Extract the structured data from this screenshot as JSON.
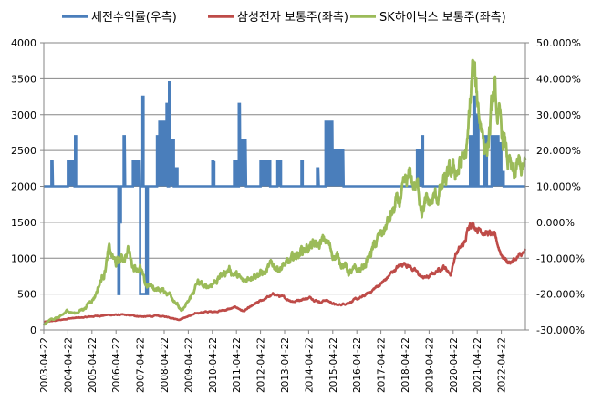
{
  "chart_data": {
    "type": "line",
    "title": "",
    "legend_position": "top",
    "grid": "horizontal",
    "y_left": {
      "min": 0,
      "max": 4000,
      "step": 500,
      "ticks": [
        "0",
        "500",
        "1000",
        "1500",
        "2000",
        "2500",
        "3000",
        "3500",
        "4000"
      ]
    },
    "y_right": {
      "min": -30,
      "max": 50,
      "step": 10,
      "ticks": [
        "-30.000%",
        "-20.000%",
        "-10.000%",
        "0.000%",
        "10.000%",
        "20.000%",
        "30.000%",
        "40.000%",
        "50.000%"
      ]
    },
    "x": {
      "start": "2003-04-22",
      "end": "2023-04-22",
      "ticks": [
        "2003-04-22",
        "2004-04-22",
        "2005-04-22",
        "2006-04-22",
        "2007-04-22",
        "2008-04-22",
        "2009-04-22",
        "2010-04-22",
        "2011-04-22",
        "2012-04-22",
        "2013-04-22",
        "2014-04-22",
        "2015-04-22",
        "2016-04-22",
        "2017-04-22",
        "2018-04-22",
        "2019-04-22",
        "2020-04-22",
        "2021-04-22",
        "2022-04-22"
      ]
    },
    "series": [
      {
        "name": "세전수익률(우측)",
        "axis": "right",
        "color": "#4a7ebb",
        "base": 10,
        "spikes": [
          {
            "from": 2003.62,
            "to": 2003.68,
            "y": 17
          },
          {
            "from": 2004.3,
            "to": 2004.58,
            "y": 17
          },
          {
            "from": 2004.6,
            "to": 2004.64,
            "y": 24
          },
          {
            "from": 2006.4,
            "to": 2006.44,
            "y": -20
          },
          {
            "from": 2006.44,
            "to": 2006.5,
            "y": 0
          },
          {
            "from": 2006.62,
            "to": 2006.68,
            "y": 24
          },
          {
            "from": 2007.0,
            "to": 2007.3,
            "y": 17
          },
          {
            "from": 2007.3,
            "to": 2007.55,
            "y": -20
          },
          {
            "from": 2007.4,
            "to": 2007.44,
            "y": 35
          },
          {
            "from": 2007.55,
            "to": 2007.62,
            "y": -20
          },
          {
            "from": 2008.0,
            "to": 2008.1,
            "y": 24
          },
          {
            "from": 2008.1,
            "to": 2008.4,
            "y": 28
          },
          {
            "from": 2008.4,
            "to": 2008.45,
            "y": 33
          },
          {
            "from": 2008.5,
            "to": 2008.55,
            "y": 39
          },
          {
            "from": 2008.55,
            "to": 2008.7,
            "y": 23
          },
          {
            "from": 2008.8,
            "to": 2008.85,
            "y": 15
          },
          {
            "from": 2010.3,
            "to": 2010.38,
            "y": 17
          },
          {
            "from": 2011.2,
            "to": 2011.3,
            "y": 17
          },
          {
            "from": 2011.4,
            "to": 2011.46,
            "y": 33
          },
          {
            "from": 2011.46,
            "to": 2011.7,
            "y": 23
          },
          {
            "from": 2012.3,
            "to": 2012.7,
            "y": 17
          },
          {
            "from": 2013.0,
            "to": 2013.15,
            "y": 17
          },
          {
            "from": 2014.0,
            "to": 2014.05,
            "y": 17
          },
          {
            "from": 2014.65,
            "to": 2014.72,
            "y": 15
          },
          {
            "from": 2015.0,
            "to": 2015.3,
            "y": 28
          },
          {
            "from": 2015.3,
            "to": 2015.45,
            "y": 20
          },
          {
            "from": 2015.45,
            "to": 2015.75,
            "y": 20
          },
          {
            "from": 2015.75,
            "to": 2015.82,
            "y": 10
          },
          {
            "from": 2018.8,
            "to": 2019.0,
            "y": 20
          },
          {
            "from": 2019.0,
            "to": 2019.05,
            "y": 24
          },
          {
            "from": 2021.0,
            "to": 2021.1,
            "y": 24
          },
          {
            "from": 2021.15,
            "to": 2021.2,
            "y": 35
          },
          {
            "from": 2021.25,
            "to": 2021.35,
            "y": 30
          },
          {
            "from": 2021.6,
            "to": 2021.7,
            "y": 24
          },
          {
            "from": 2021.9,
            "to": 2022.2,
            "y": 24
          },
          {
            "from": 2022.2,
            "to": 2022.3,
            "y": 22
          },
          {
            "from": 2022.3,
            "to": 2022.4,
            "y": 14
          }
        ]
      },
      {
        "name": "삼성전자 보통주(좌측)",
        "axis": "left",
        "color": "#be4b48",
        "anchors": [
          [
            2003.3,
            110
          ],
          [
            2004.0,
            140
          ],
          [
            2004.3,
            160
          ],
          [
            2005.0,
            175
          ],
          [
            2005.5,
            195
          ],
          [
            2006.0,
            210
          ],
          [
            2006.5,
            210
          ],
          [
            2007.0,
            200
          ],
          [
            2007.5,
            185
          ],
          [
            2008.0,
            195
          ],
          [
            2008.5,
            180
          ],
          [
            2008.9,
            145
          ],
          [
            2009.3,
            190
          ],
          [
            2009.8,
            245
          ],
          [
            2010.3,
            255
          ],
          [
            2010.8,
            275
          ],
          [
            2011.3,
            315
          ],
          [
            2011.6,
            260
          ],
          [
            2012.0,
            340
          ],
          [
            2012.5,
            440
          ],
          [
            2012.9,
            500
          ],
          [
            2013.3,
            440
          ],
          [
            2013.7,
            400
          ],
          [
            2014.0,
            430
          ],
          [
            2014.4,
            450
          ],
          [
            2014.8,
            390
          ],
          [
            2015.0,
            420
          ],
          [
            2015.5,
            340
          ],
          [
            2016.0,
            390
          ],
          [
            2016.5,
            450
          ],
          [
            2016.9,
            540
          ],
          [
            2017.5,
            700
          ],
          [
            2017.9,
            850
          ],
          [
            2018.3,
            940
          ],
          [
            2018.6,
            860
          ],
          [
            2019.0,
            730
          ],
          [
            2019.3,
            740
          ],
          [
            2019.9,
            890
          ],
          [
            2020.2,
            780
          ],
          [
            2020.4,
            1060
          ],
          [
            2020.8,
            1220
          ],
          [
            2021.0,
            1530
          ],
          [
            2021.3,
            1430
          ],
          [
            2021.6,
            1380
          ],
          [
            2022.0,
            1300
          ],
          [
            2022.3,
            1060
          ],
          [
            2022.6,
            940
          ],
          [
            2022.9,
            990
          ],
          [
            2023.3,
            1080
          ]
        ]
      },
      {
        "name": "SK하이닉스 보통주(좌측)",
        "axis": "left",
        "color": "#9bbb59",
        "anchors": [
          [
            2003.3,
            70
          ],
          [
            2003.6,
            150
          ],
          [
            2004.0,
            180
          ],
          [
            2004.3,
            270
          ],
          [
            2004.6,
            230
          ],
          [
            2005.0,
            310
          ],
          [
            2005.4,
            470
          ],
          [
            2005.8,
            800
          ],
          [
            2006.0,
            1100
          ],
          [
            2006.3,
            920
          ],
          [
            2006.6,
            1000
          ],
          [
            2006.8,
            1120
          ],
          [
            2007.0,
            920
          ],
          [
            2007.3,
            870
          ],
          [
            2007.5,
            620
          ],
          [
            2007.8,
            600
          ],
          [
            2008.0,
            570
          ],
          [
            2008.5,
            520
          ],
          [
            2008.8,
            400
          ],
          [
            2009.0,
            250
          ],
          [
            2009.3,
            380
          ],
          [
            2009.7,
            660
          ],
          [
            2010.0,
            580
          ],
          [
            2010.5,
            710
          ],
          [
            2011.0,
            850
          ],
          [
            2011.3,
            760
          ],
          [
            2011.6,
            650
          ],
          [
            2012.0,
            810
          ],
          [
            2012.5,
            790
          ],
          [
            2012.8,
            900
          ],
          [
            2013.0,
            880
          ],
          [
            2013.5,
            910
          ],
          [
            2013.8,
            1050
          ],
          [
            2014.0,
            1120
          ],
          [
            2014.3,
            1170
          ],
          [
            2014.6,
            1150
          ],
          [
            2015.0,
            1240
          ],
          [
            2015.4,
            1030
          ],
          [
            2015.7,
            950
          ],
          [
            2016.0,
            790
          ],
          [
            2016.5,
            840
          ],
          [
            2016.9,
            1080
          ],
          [
            2017.4,
            1370
          ],
          [
            2017.9,
            1690
          ],
          [
            2018.2,
            1840
          ],
          [
            2018.5,
            2080
          ],
          [
            2018.8,
            1990
          ],
          [
            2019.0,
            1780
          ],
          [
            2019.3,
            1730
          ],
          [
            2019.7,
            1880
          ],
          [
            2020.0,
            2050
          ],
          [
            2020.5,
            2250
          ],
          [
            2020.9,
            2500
          ],
          [
            2021.1,
            3600
          ],
          [
            2021.4,
            3000
          ],
          [
            2021.7,
            2520
          ],
          [
            2022.0,
            3230
          ],
          [
            2022.2,
            2850
          ],
          [
            2022.5,
            2470
          ],
          [
            2022.8,
            2050
          ],
          [
            2023.0,
            2250
          ],
          [
            2023.3,
            2220
          ]
        ]
      }
    ]
  }
}
